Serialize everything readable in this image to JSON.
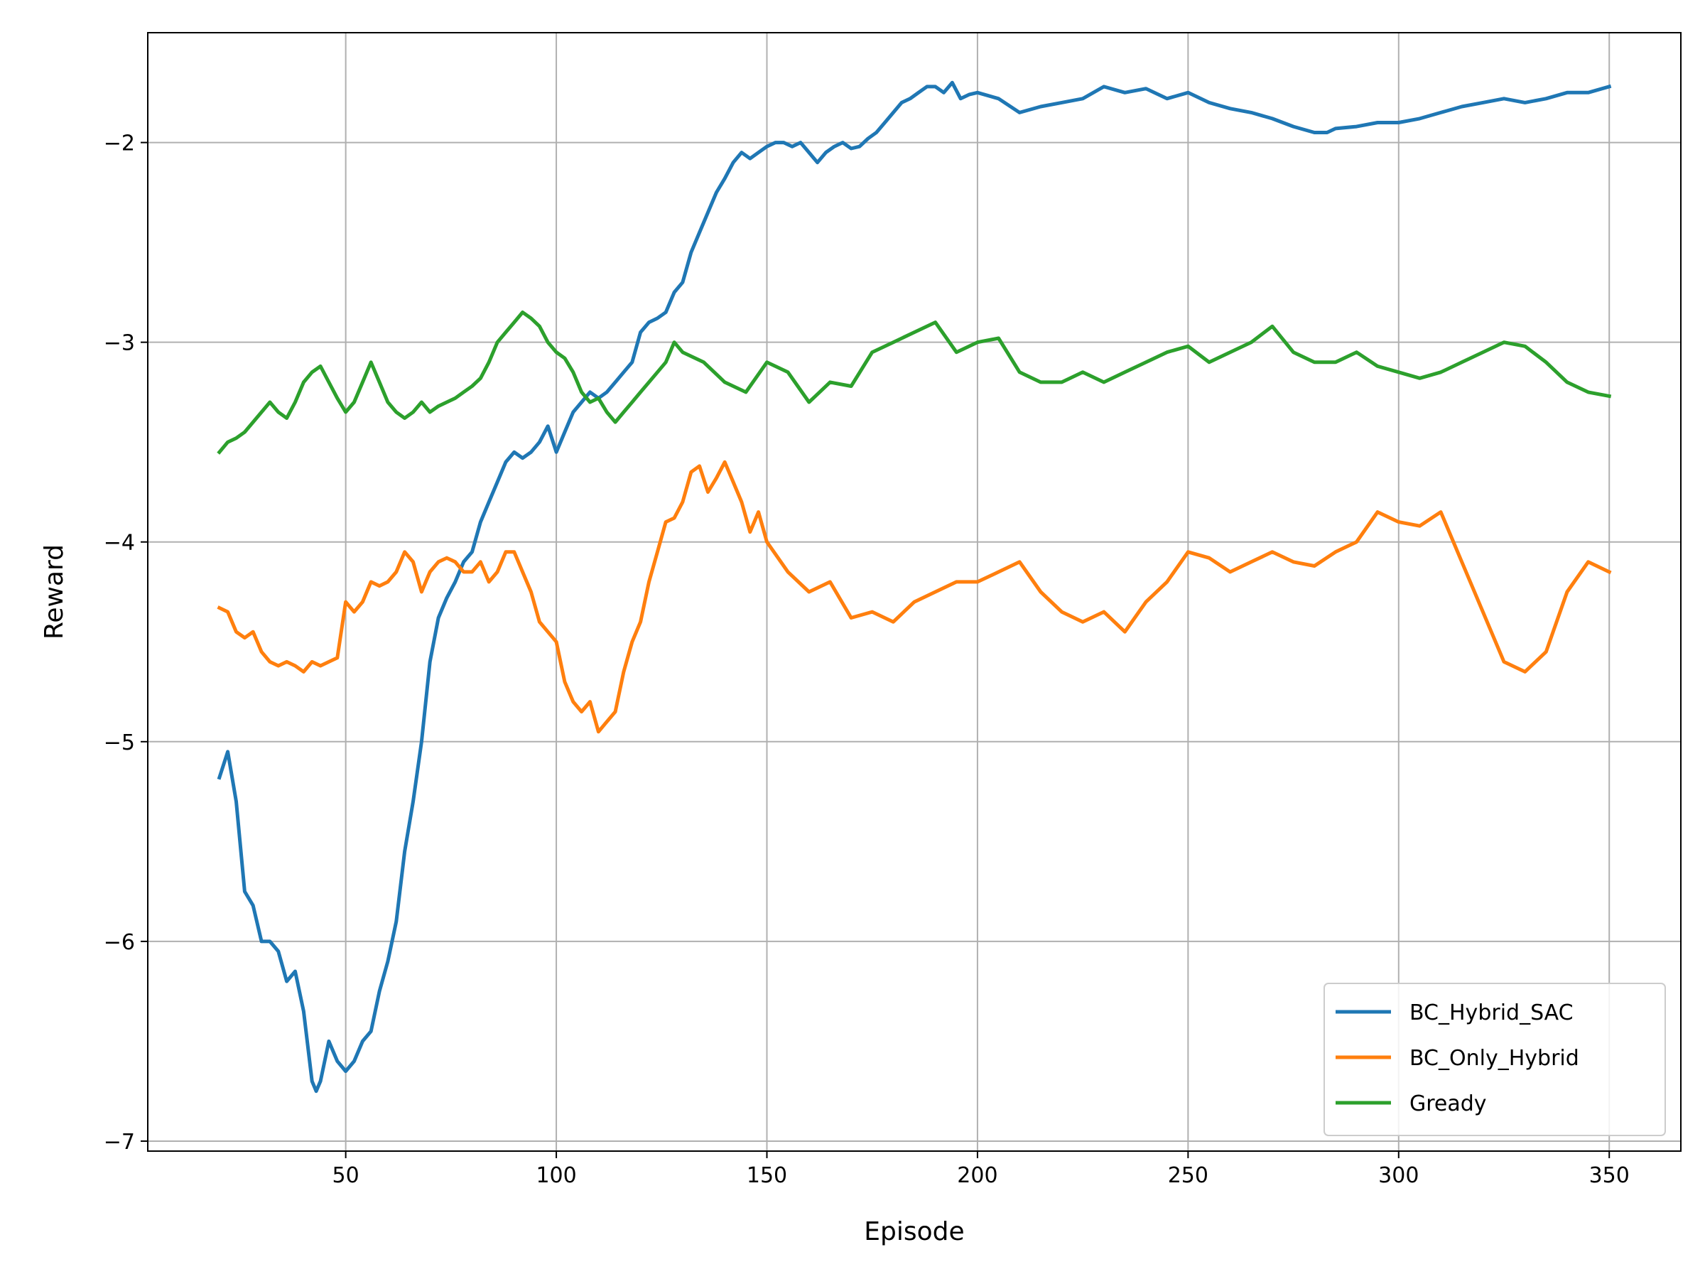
{
  "chart_data": {
    "type": "line",
    "xlabel": "Episode",
    "ylabel": "Reward",
    "xlim": [
      3,
      367
    ],
    "ylim": [
      -7.05,
      -1.45
    ],
    "xticks": [
      50,
      100,
      150,
      200,
      250,
      300,
      350
    ],
    "yticks": [
      -7,
      -6,
      -5,
      -4,
      -3,
      -2
    ],
    "ytick_labels": [
      "−7",
      "−6",
      "−5",
      "−4",
      "−3",
      "−2"
    ],
    "grid": true,
    "legend_position": "lower-right",
    "series": [
      {
        "name": "BC_Hybrid_SAC",
        "color": "#1f77b4",
        "x": [
          20,
          22,
          24,
          26,
          28,
          30,
          32,
          34,
          36,
          38,
          40,
          42,
          43,
          44,
          46,
          48,
          50,
          52,
          54,
          56,
          58,
          60,
          62,
          64,
          66,
          68,
          70,
          72,
          74,
          76,
          78,
          80,
          82,
          84,
          86,
          88,
          90,
          92,
          94,
          96,
          98,
          100,
          102,
          104,
          106,
          108,
          110,
          112,
          114,
          116,
          118,
          120,
          122,
          124,
          126,
          128,
          130,
          132,
          134,
          136,
          138,
          140,
          142,
          144,
          146,
          148,
          150,
          152,
          154,
          156,
          158,
          160,
          162,
          164,
          166,
          168,
          170,
          172,
          174,
          176,
          178,
          180,
          182,
          184,
          186,
          188,
          190,
          192,
          194,
          196,
          198,
          200,
          205,
          210,
          215,
          220,
          225,
          230,
          235,
          240,
          245,
          250,
          255,
          260,
          265,
          270,
          275,
          280,
          283,
          285,
          290,
          295,
          300,
          305,
          310,
          315,
          320,
          325,
          330,
          335,
          340,
          345,
          350
        ],
        "y": [
          -5.18,
          -5.05,
          -5.3,
          -5.75,
          -5.82,
          -6.0,
          -6.0,
          -6.05,
          -6.2,
          -6.15,
          -6.35,
          -6.7,
          -6.75,
          -6.7,
          -6.5,
          -6.6,
          -6.65,
          -6.6,
          -6.5,
          -6.45,
          -6.25,
          -6.1,
          -5.9,
          -5.55,
          -5.3,
          -5.0,
          -4.6,
          -4.38,
          -4.28,
          -4.2,
          -4.1,
          -4.05,
          -3.9,
          -3.8,
          -3.7,
          -3.6,
          -3.55,
          -3.58,
          -3.55,
          -3.5,
          -3.42,
          -3.55,
          -3.45,
          -3.35,
          -3.3,
          -3.25,
          -3.28,
          -3.25,
          -3.2,
          -3.15,
          -3.1,
          -2.95,
          -2.9,
          -2.88,
          -2.85,
          -2.75,
          -2.7,
          -2.55,
          -2.45,
          -2.35,
          -2.25,
          -2.18,
          -2.1,
          -2.05,
          -2.08,
          -2.05,
          -2.02,
          -2.0,
          -2.0,
          -2.02,
          -2.0,
          -2.05,
          -2.1,
          -2.05,
          -2.02,
          -2.0,
          -2.03,
          -2.02,
          -1.98,
          -1.95,
          -1.9,
          -1.85,
          -1.8,
          -1.78,
          -1.75,
          -1.72,
          -1.72,
          -1.75,
          -1.7,
          -1.78,
          -1.76,
          -1.75,
          -1.78,
          -1.85,
          -1.82,
          -1.8,
          -1.78,
          -1.72,
          -1.75,
          -1.73,
          -1.78,
          -1.75,
          -1.8,
          -1.83,
          -1.85,
          -1.88,
          -1.92,
          -1.95,
          -1.95,
          -1.93,
          -1.92,
          -1.9,
          -1.9,
          -1.88,
          -1.85,
          -1.82,
          -1.8,
          -1.78,
          -1.8,
          -1.78,
          -1.75,
          -1.75,
          -1.72
        ]
      },
      {
        "name": "BC_Only_Hybrid",
        "color": "#ff7f0e",
        "x": [
          20,
          22,
          24,
          26,
          28,
          30,
          32,
          34,
          36,
          38,
          40,
          42,
          44,
          46,
          48,
          50,
          52,
          54,
          56,
          58,
          60,
          62,
          64,
          66,
          68,
          70,
          72,
          74,
          76,
          78,
          80,
          82,
          84,
          86,
          88,
          90,
          92,
          94,
          96,
          98,
          100,
          102,
          104,
          106,
          108,
          110,
          112,
          114,
          116,
          118,
          120,
          122,
          124,
          126,
          128,
          130,
          132,
          134,
          136,
          138,
          140,
          142,
          144,
          146,
          148,
          150,
          155,
          160,
          165,
          170,
          175,
          180,
          185,
          190,
          195,
          200,
          205,
          210,
          215,
          220,
          225,
          230,
          235,
          240,
          245,
          250,
          255,
          260,
          265,
          270,
          275,
          280,
          285,
          290,
          295,
          300,
          305,
          310,
          315,
          320,
          325,
          330,
          335,
          340,
          345,
          350
        ],
        "y": [
          -4.33,
          -4.35,
          -4.45,
          -4.48,
          -4.45,
          -4.55,
          -4.6,
          -4.62,
          -4.6,
          -4.62,
          -4.65,
          -4.6,
          -4.62,
          -4.6,
          -4.58,
          -4.3,
          -4.35,
          -4.3,
          -4.2,
          -4.22,
          -4.2,
          -4.15,
          -4.05,
          -4.1,
          -4.25,
          -4.15,
          -4.1,
          -4.08,
          -4.1,
          -4.15,
          -4.15,
          -4.1,
          -4.2,
          -4.15,
          -4.05,
          -4.05,
          -4.15,
          -4.25,
          -4.4,
          -4.45,
          -4.5,
          -4.7,
          -4.8,
          -4.85,
          -4.8,
          -4.95,
          -4.9,
          -4.85,
          -4.65,
          -4.5,
          -4.4,
          -4.2,
          -4.05,
          -3.9,
          -3.88,
          -3.8,
          -3.65,
          -3.62,
          -3.75,
          -3.68,
          -3.6,
          -3.7,
          -3.8,
          -3.95,
          -3.85,
          -4.0,
          -4.15,
          -4.25,
          -4.2,
          -4.38,
          -4.35,
          -4.4,
          -4.3,
          -4.25,
          -4.2,
          -4.2,
          -4.15,
          -4.1,
          -4.25,
          -4.35,
          -4.4,
          -4.35,
          -4.45,
          -4.3,
          -4.2,
          -4.05,
          -4.08,
          -4.15,
          -4.1,
          -4.05,
          -4.1,
          -4.12,
          -4.05,
          -4.0,
          -3.85,
          -3.9,
          -3.92,
          -3.85,
          -4.1,
          -4.35,
          -4.6,
          -4.65,
          -4.55,
          -4.25,
          -4.1,
          -4.15
        ]
      },
      {
        "name": "Gready",
        "color": "#2ca02c",
        "x": [
          20,
          22,
          24,
          26,
          28,
          30,
          32,
          34,
          36,
          38,
          40,
          42,
          44,
          46,
          48,
          50,
          52,
          54,
          56,
          58,
          60,
          62,
          64,
          66,
          68,
          70,
          72,
          74,
          76,
          78,
          80,
          82,
          84,
          86,
          88,
          90,
          92,
          94,
          96,
          98,
          100,
          102,
          104,
          106,
          108,
          110,
          112,
          114,
          116,
          118,
          120,
          122,
          124,
          126,
          128,
          130,
          135,
          140,
          145,
          150,
          155,
          160,
          165,
          170,
          175,
          180,
          185,
          190,
          195,
          200,
          205,
          210,
          215,
          220,
          225,
          230,
          235,
          240,
          245,
          250,
          255,
          260,
          265,
          270,
          275,
          280,
          285,
          290,
          295,
          300,
          305,
          310,
          315,
          320,
          325,
          330,
          335,
          340,
          345,
          350
        ],
        "y": [
          -3.55,
          -3.5,
          -3.48,
          -3.45,
          -3.4,
          -3.35,
          -3.3,
          -3.35,
          -3.38,
          -3.3,
          -3.2,
          -3.15,
          -3.12,
          -3.2,
          -3.28,
          -3.35,
          -3.3,
          -3.2,
          -3.1,
          -3.2,
          -3.3,
          -3.35,
          -3.38,
          -3.35,
          -3.3,
          -3.35,
          -3.32,
          -3.3,
          -3.28,
          -3.25,
          -3.22,
          -3.18,
          -3.1,
          -3.0,
          -2.95,
          -2.9,
          -2.85,
          -2.88,
          -2.92,
          -3.0,
          -3.05,
          -3.08,
          -3.15,
          -3.25,
          -3.3,
          -3.28,
          -3.35,
          -3.4,
          -3.35,
          -3.3,
          -3.25,
          -3.2,
          -3.15,
          -3.1,
          -3.0,
          -3.05,
          -3.1,
          -3.2,
          -3.25,
          -3.1,
          -3.15,
          -3.3,
          -3.2,
          -3.22,
          -3.05,
          -3.0,
          -2.95,
          -2.9,
          -3.05,
          -3.0,
          -2.98,
          -3.15,
          -3.2,
          -3.2,
          -3.15,
          -3.2,
          -3.15,
          -3.1,
          -3.05,
          -3.02,
          -3.1,
          -3.05,
          -3.0,
          -2.92,
          -3.05,
          -3.1,
          -3.1,
          -3.05,
          -3.12,
          -3.15,
          -3.18,
          -3.15,
          -3.1,
          -3.05,
          -3.0,
          -3.02,
          -3.1,
          -3.2,
          -3.25,
          -3.27
        ]
      }
    ]
  }
}
